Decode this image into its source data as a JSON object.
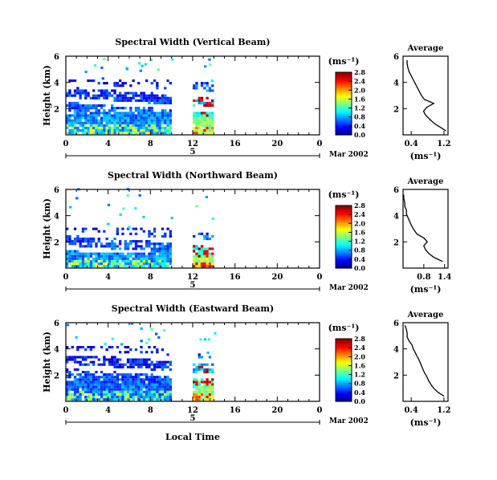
{
  "figure": {
    "xlabel": "Local Time",
    "date_label": "Mar 2002",
    "day_label": "5",
    "ylabel": "Height (km)",
    "cbar_unit": "(ms⁻¹)",
    "avg_title": "Average",
    "avg_xlabel": "(ms⁻¹)"
  },
  "chart_data": [
    {
      "type": "heatmap",
      "title": "Spectral Width (Vertical Beam)",
      "xlabel": "Local Time",
      "ylabel": "Height (km)",
      "xlim": [
        0,
        24
      ],
      "ylim": [
        0,
        6
      ],
      "x_ticks": [
        "0",
        "4",
        "8",
        "12",
        "16",
        "20",
        "0"
      ],
      "y_ticks": [
        "2",
        "4",
        "6"
      ],
      "colorbar_unit": "(ms⁻¹)",
      "colorbar_ticks": [
        "0.0",
        "0.4",
        "0.8",
        "1.2",
        "1.6",
        "2.0",
        "2.4",
        "2.8"
      ],
      "colorbar_range": [
        0,
        2.8
      ],
      "date": "Mar 2002",
      "day": "5",
      "segments": [
        {
          "t_start": 0,
          "t_end": 10,
          "top_km": 4.2,
          "base_value": 0.6
        },
        {
          "t_start": 12,
          "t_end": 14,
          "top_km": 4.0,
          "base_value": 1.2
        }
      ],
      "profile": {
        "title": "Average",
        "xlabel": "(ms⁻¹)",
        "xlim": [
          0.2,
          1.3
        ],
        "x_ticks": [
          "0.4",
          "1.2"
        ],
        "ylim": [
          0,
          6
        ],
        "y_ticks": [
          "2",
          "4",
          "6"
        ],
        "height_km": [
          0.3,
          0.6,
          0.9,
          1.2,
          1.5,
          1.8,
          2.1,
          2.4,
          2.7,
          3.0,
          3.3,
          3.6,
          3.9,
          4.2,
          4.5,
          4.8,
          5.1,
          5.4,
          5.7
        ],
        "width": [
          1.25,
          1.1,
          0.95,
          0.85,
          0.75,
          0.7,
          0.78,
          0.95,
          0.72,
          0.65,
          0.6,
          0.55,
          0.5,
          0.45,
          0.4,
          0.35,
          0.32,
          0.3,
          0.3
        ]
      }
    },
    {
      "type": "heatmap",
      "title": "Spectral Width (Northward Beam)",
      "xlabel": "Local Time",
      "ylabel": "Height (km)",
      "xlim": [
        0,
        24
      ],
      "ylim": [
        0,
        6
      ],
      "x_ticks": [
        "0",
        "4",
        "8",
        "12",
        "16",
        "20",
        "0"
      ],
      "y_ticks": [
        "2",
        "4",
        "6"
      ],
      "colorbar_unit": "(ms⁻¹)",
      "colorbar_ticks": [
        "0.0",
        "0.4",
        "0.8",
        "1.2",
        "1.6",
        "2.0",
        "2.4",
        "2.8"
      ],
      "colorbar_range": [
        0,
        2.8
      ],
      "date": "Mar 2002",
      "day": "5",
      "segments": [
        {
          "t_start": 0,
          "t_end": 10,
          "top_km": 3.0,
          "base_value": 0.6
        },
        {
          "t_start": 12,
          "t_end": 14,
          "top_km": 2.6,
          "base_value": 1.3
        }
      ],
      "profile": {
        "title": "Average",
        "xlabel": "(ms⁻¹)",
        "xlim": [
          0.2,
          1.5
        ],
        "x_ticks": [
          "0.8",
          "1.4"
        ],
        "ylim": [
          0,
          6
        ],
        "y_ticks": [
          "2",
          "4",
          "6"
        ],
        "height_km": [
          0.5,
          0.8,
          1.1,
          1.4,
          1.7,
          2.0,
          2.3,
          2.6,
          2.9,
          3.2,
          3.5,
          3.8,
          4.1,
          4.4,
          4.7,
          5.0,
          5.3,
          5.6
        ],
        "width": [
          1.35,
          1.1,
          0.95,
          0.85,
          0.8,
          0.9,
          0.8,
          0.6,
          0.52,
          0.45,
          0.4,
          0.35,
          0.3,
          0.3,
          0.25,
          0.25,
          0.22,
          0.22
        ]
      }
    },
    {
      "type": "heatmap",
      "title": "Spectral Width (Eastward Beam)",
      "xlabel": "Local Time",
      "ylabel": "Height (km)",
      "xlim": [
        0,
        24
      ],
      "ylim": [
        0,
        6
      ],
      "x_ticks": [
        "0",
        "4",
        "8",
        "12",
        "16",
        "20",
        "0"
      ],
      "y_ticks": [
        "2",
        "4",
        "6"
      ],
      "colorbar_unit": "(ms⁻¹)",
      "colorbar_ticks": [
        "0.0",
        "0.4",
        "0.8",
        "1.2",
        "1.6",
        "2.0",
        "2.4",
        "2.8"
      ],
      "colorbar_range": [
        0,
        2.8
      ],
      "date": "Mar 2002",
      "day": "5",
      "segments": [
        {
          "t_start": 0,
          "t_end": 10,
          "top_km": 4.2,
          "base_value": 0.5
        },
        {
          "t_start": 12,
          "t_end": 14,
          "top_km": 3.6,
          "base_value": 1.2
        }
      ],
      "profile": {
        "title": "Average",
        "xlabel": "(ms⁻¹)",
        "xlim": [
          0.2,
          1.3
        ],
        "x_ticks": [
          "0.4",
          "1.2"
        ],
        "ylim": [
          0,
          6
        ],
        "y_ticks": [
          "2",
          "4",
          "6"
        ],
        "height_km": [
          0.4,
          0.7,
          1.0,
          1.3,
          1.6,
          1.9,
          2.2,
          2.5,
          2.8,
          3.1,
          3.4,
          3.7,
          4.0,
          4.3,
          4.6,
          4.9,
          5.2,
          5.5,
          5.8
        ],
        "width": [
          1.2,
          1.05,
          0.95,
          0.88,
          0.82,
          0.78,
          0.72,
          0.68,
          0.64,
          0.6,
          0.55,
          0.5,
          0.45,
          0.42,
          0.35,
          0.3,
          0.3,
          0.28,
          0.25
        ]
      }
    }
  ]
}
